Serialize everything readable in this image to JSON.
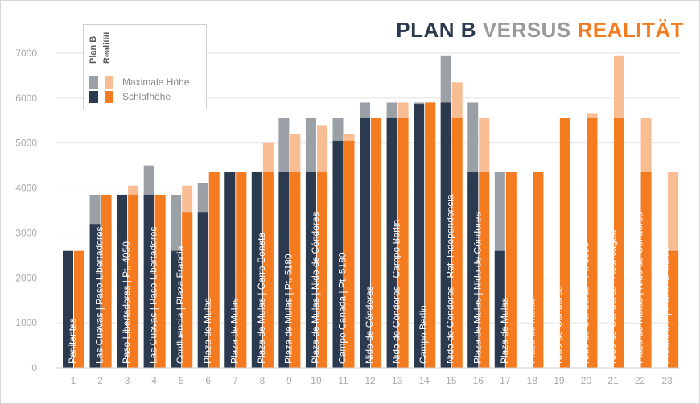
{
  "title": {
    "part1": "PLAN B",
    "part2": "VERSUS",
    "part3": "REALITÄT",
    "colors": {
      "part1": "#2b3a4e",
      "part2": "#9a9a9a",
      "part3": "#f47b20"
    }
  },
  "legend": {
    "plan_header": "Plan B",
    "real_header": "Realität",
    "max_label": "Maximale Höhe",
    "sleep_label": "Schlafhöhe"
  },
  "colors": {
    "plan_sleep": "#2b3a4e",
    "plan_max": "#9aa0a6",
    "real_sleep": "#f47b20",
    "real_max": "#f9bd94",
    "label_text": "#ffffff",
    "axis_text": "#aaaaaa",
    "grid": "#e2e2e2"
  },
  "chart_data": {
    "type": "bar",
    "title": "PLAN B VERSUS REALITÄT",
    "xlabel": "",
    "ylabel": "",
    "ylim": [
      0,
      7000
    ],
    "yticks": [
      0,
      1000,
      2000,
      3000,
      4000,
      5000,
      6000,
      7000
    ],
    "grid": true,
    "legend_position": "top-left",
    "categories": [
      "1",
      "2",
      "3",
      "4",
      "5",
      "6",
      "7",
      "8",
      "9",
      "10",
      "11",
      "12",
      "13",
      "14",
      "15",
      "16",
      "17",
      "18",
      "19",
      "20",
      "21",
      "22",
      "23"
    ],
    "series": [
      {
        "name": "Plan B – Maximale Höhe",
        "values": [
          2600,
          3850,
          3850,
          4500,
          3850,
          4100,
          4350,
          4350,
          5550,
          5550,
          5550,
          5900,
          5900,
          5900,
          6950,
          5900,
          4350,
          null,
          null,
          null,
          null,
          null,
          null
        ]
      },
      {
        "name": "Plan B – Schlafhöhe",
        "values": [
          2600,
          3200,
          3850,
          3850,
          2600,
          3450,
          4350,
          4350,
          4350,
          4350,
          5050,
          5550,
          5550,
          5870,
          5900,
          4350,
          2600,
          null,
          null,
          null,
          null,
          null,
          null
        ]
      },
      {
        "name": "Realität – Maximale Höhe",
        "values": [
          2600,
          3850,
          4050,
          3850,
          4050,
          4350,
          4350,
          5000,
          5200,
          5400,
          5200,
          5550,
          5900,
          5900,
          6350,
          5550,
          4350,
          4350,
          5550,
          5650,
          6950,
          5550,
          4350
        ]
      },
      {
        "name": "Realität – Schlafhöhe",
        "values": [
          2600,
          3850,
          3850,
          3850,
          3450,
          4350,
          4350,
          4350,
          4350,
          4350,
          5050,
          5550,
          5550,
          5900,
          5550,
          4350,
          4350,
          4350,
          5550,
          5550,
          5550,
          4350,
          2600
        ]
      }
    ],
    "bar_labels": [
      "Penitentes",
      "Las Cuevas | Paso Libertadores",
      "Paso Libertadores | Pt. 4050",
      "Las Cuevas | Paso Libertadores",
      "Confluencia | Plaza Francia",
      "Plaza de Mulas",
      "Plaza de Mulas",
      "Plaza de Mulas | Cerro Bonete",
      "Plaza de Mulas | Pt. 5180",
      "Plaza de Mulas | Nido de Cóndores",
      "Campo Canada | Pt. 5180",
      "Nido de Cóndores",
      "Nido de Cóndores | Campo Berlin",
      "Campo Berlin",
      "Nido de Cóndores | Ref. Independencia",
      "Plaza de Mulas | Nido de Cóndores",
      "Plaza de Mulas",
      "Plaza de Mulas",
      "Nido de Cóndores",
      "Nido de Cóndores | Pt. 5650",
      "Nido de Cóndores | Aconcagua",
      "Plaza de Mulas | Nido de Cóndores",
      "Penitentes | Plaza de Mulas"
    ]
  }
}
